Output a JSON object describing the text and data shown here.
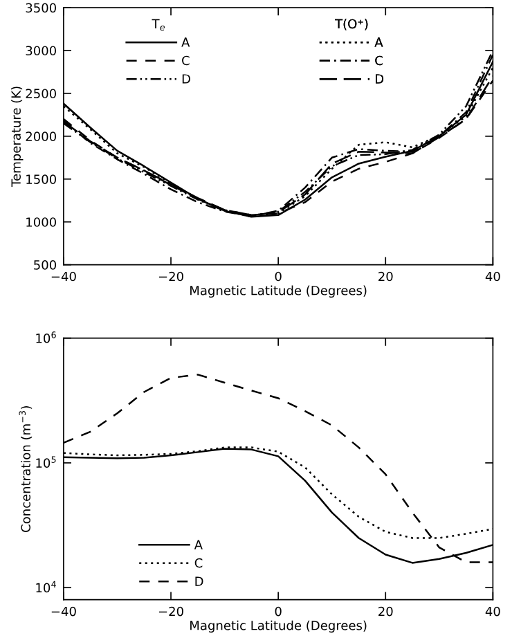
{
  "chart_data": [
    {
      "type": "line",
      "ylabel": "Temperature (K)",
      "xlabel": "Magnetic Latitude (Degrees)",
      "xlim": [
        -40,
        40
      ],
      "xticks": [
        -40,
        -20,
        0,
        20,
        40
      ],
      "ylim": [
        500,
        3500
      ],
      "yticks": [
        500,
        1000,
        1500,
        2000,
        2500,
        3000,
        3500
      ],
      "grid": false,
      "legend": "top",
      "annotations": [
        "T$_{e}$",
        "T(O⁺)"
      ],
      "x": [
        -40,
        -35,
        -30,
        -25,
        -20,
        -15,
        -10,
        -5,
        0,
        5,
        10,
        15,
        20,
        25,
        30,
        35,
        40
      ],
      "series": [
        {
          "name": "A",
          "color": "#000000",
          "line_style": "solid",
          "values": [
            2380,
            2100,
            1830,
            1650,
            1460,
            1270,
            1130,
            1060,
            1080,
            1260,
            1520,
            1680,
            1760,
            1830,
            2000,
            2250,
            2870
          ]
        },
        {
          "name": "C",
          "color": "#000000",
          "line_style": "dashed",
          "values": [
            2200,
            1950,
            1750,
            1600,
            1430,
            1270,
            1140,
            1080,
            1100,
            1230,
            1470,
            1620,
            1700,
            1800,
            1980,
            2200,
            2650
          ]
        },
        {
          "name": "D",
          "color": "#000000",
          "line_style": "dash-dot-dot",
          "values": [
            2150,
            1930,
            1740,
            1580,
            1420,
            1260,
            1130,
            1070,
            1120,
            1350,
            1650,
            1780,
            1790,
            1840,
            2020,
            2350,
            3000
          ]
        },
        {
          "name": "A",
          "color": "#000000",
          "line_style": "dotted",
          "values": [
            2350,
            2080,
            1800,
            1640,
            1450,
            1270,
            1130,
            1060,
            1100,
            1300,
            1620,
            1900,
            1930,
            1870,
            2010,
            2230,
            2800
          ]
        },
        {
          "name": "C",
          "color": "#000000",
          "line_style": "dash-dot",
          "values": [
            2180,
            1920,
            1730,
            1560,
            1380,
            1230,
            1120,
            1070,
            1130,
            1400,
            1750,
            1850,
            1830,
            1820,
            2000,
            2280,
            2950
          ]
        },
        {
          "name": "D",
          "color": "#000000",
          "line_style": "long-dash",
          "values": [
            2170,
            1940,
            1750,
            1600,
            1440,
            1280,
            1140,
            1080,
            1110,
            1320,
            1680,
            1820,
            1810,
            1800,
            1990,
            2200,
            2700
          ]
        }
      ]
    },
    {
      "type": "line",
      "ylabel": "Concentration (m$^{−3}$)",
      "xlabel": "Magnetic Latitude (Degrees)",
      "xlim": [
        -40,
        40
      ],
      "xticks": [
        -40,
        -20,
        0,
        20,
        40
      ],
      "log": "y",
      "ylim": [
        8000,
        1000000
      ],
      "yticks": [
        {
          "value": 10000,
          "label": "10$^{4}$"
        },
        {
          "value": 100000,
          "label": "10$^{5}$"
        },
        {
          "value": 1000000,
          "label": "10$^{6}$"
        }
      ],
      "grid": false,
      "legend": "bottom left",
      "x": [
        -40,
        -35,
        -30,
        -25,
        -20,
        -15,
        -10,
        -5,
        0,
        5,
        10,
        15,
        20,
        25,
        30,
        35,
        40
      ],
      "series": [
        {
          "name": "A",
          "color": "#000000",
          "line_style": "solid",
          "values": [
            111000,
            110000,
            109000,
            110000,
            115000,
            122000,
            130000,
            128000,
            113000,
            72000,
            40000,
            25000,
            18400,
            15800,
            17000,
            19000,
            22000
          ]
        },
        {
          "name": "C",
          "color": "#000000",
          "line_style": "dotted",
          "values": [
            120000,
            117000,
            115000,
            116000,
            118000,
            124000,
            133000,
            133000,
            123000,
            92000,
            56000,
            37000,
            28000,
            25000,
            25000,
            27000,
            29500
          ]
        },
        {
          "name": "D",
          "color": "#000000",
          "line_style": "dashed",
          "values": [
            145000,
            178000,
            250000,
            370000,
            480000,
            510000,
            440000,
            380000,
            330000,
            260000,
            200000,
            133000,
            81000,
            40000,
            21000,
            16000,
            16000
          ]
        }
      ]
    }
  ]
}
